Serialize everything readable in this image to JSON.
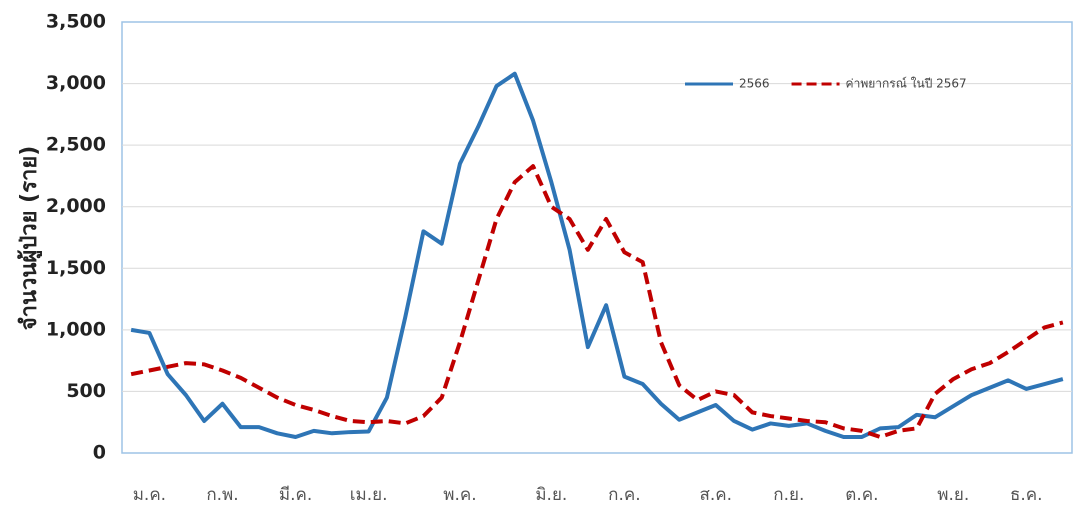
{
  "chart_data": {
    "type": "line",
    "y_label": "จำนวนผู้ป่วย (ราย)",
    "categories": [
      null,
      "ม.ค.",
      null,
      null,
      null,
      "ก.พ.",
      null,
      null,
      null,
      "มี.ค.",
      null,
      null,
      null,
      "เม.ย.",
      null,
      null,
      null,
      null,
      "พ.ค.",
      null,
      null,
      null,
      null,
      "มิ.ย.",
      null,
      null,
      null,
      "ก.ค.",
      null,
      null,
      null,
      null,
      "ส.ค.",
      null,
      null,
      null,
      "ก.ย.",
      null,
      null,
      null,
      "ต.ค.",
      null,
      null,
      null,
      null,
      "พ.ย.",
      null,
      null,
      null,
      "ธ.ค.",
      null,
      null
    ],
    "series": [
      {
        "name": "2566",
        "color": "#2e75b6",
        "dash": false,
        "values": [
          1000,
          975,
          640,
          470,
          260,
          400,
          210,
          210,
          160,
          130,
          180,
          160,
          170,
          175,
          450,
          1100,
          1800,
          1700,
          2350,
          2650,
          2980,
          3080,
          2700,
          2200,
          1650,
          860,
          1200,
          620,
          560,
          400,
          270,
          330,
          390,
          260,
          190,
          240,
          220,
          240,
          180,
          130,
          130,
          200,
          210,
          310,
          290,
          380,
          470,
          530,
          590,
          520,
          560,
          600
        ]
      },
      {
        "name": "ค่าพยากรณ์ ในปี 2567",
        "color": "#c00000",
        "dash": true,
        "values": [
          640,
          670,
          700,
          730,
          720,
          670,
          610,
          530,
          450,
          390,
          350,
          300,
          260,
          250,
          260,
          240,
          300,
          450,
          900,
          1400,
          1900,
          2200,
          2330,
          2000,
          1900,
          1650,
          1900,
          1630,
          1550,
          900,
          550,
          430,
          500,
          470,
          330,
          300,
          280,
          260,
          250,
          200,
          180,
          130,
          180,
          200,
          480,
          600,
          680,
          730,
          820,
          920,
          1020,
          1060
        ]
      }
    ],
    "ylim": [
      0,
      3500
    ],
    "yticks": [
      0,
      500,
      {
        "value": 1000,
        "label": "1,000"
      },
      {
        "value": 1500,
        "label": "1,500"
      },
      {
        "value": 2000,
        "label": "2,000"
      },
      {
        "value": 2500,
        "label": "2,500"
      },
      {
        "value": 3000,
        "label": "3,000"
      },
      {
        "value": 3500,
        "label": "3,500"
      }
    ],
    "grid": true,
    "legend": "top-right"
  }
}
